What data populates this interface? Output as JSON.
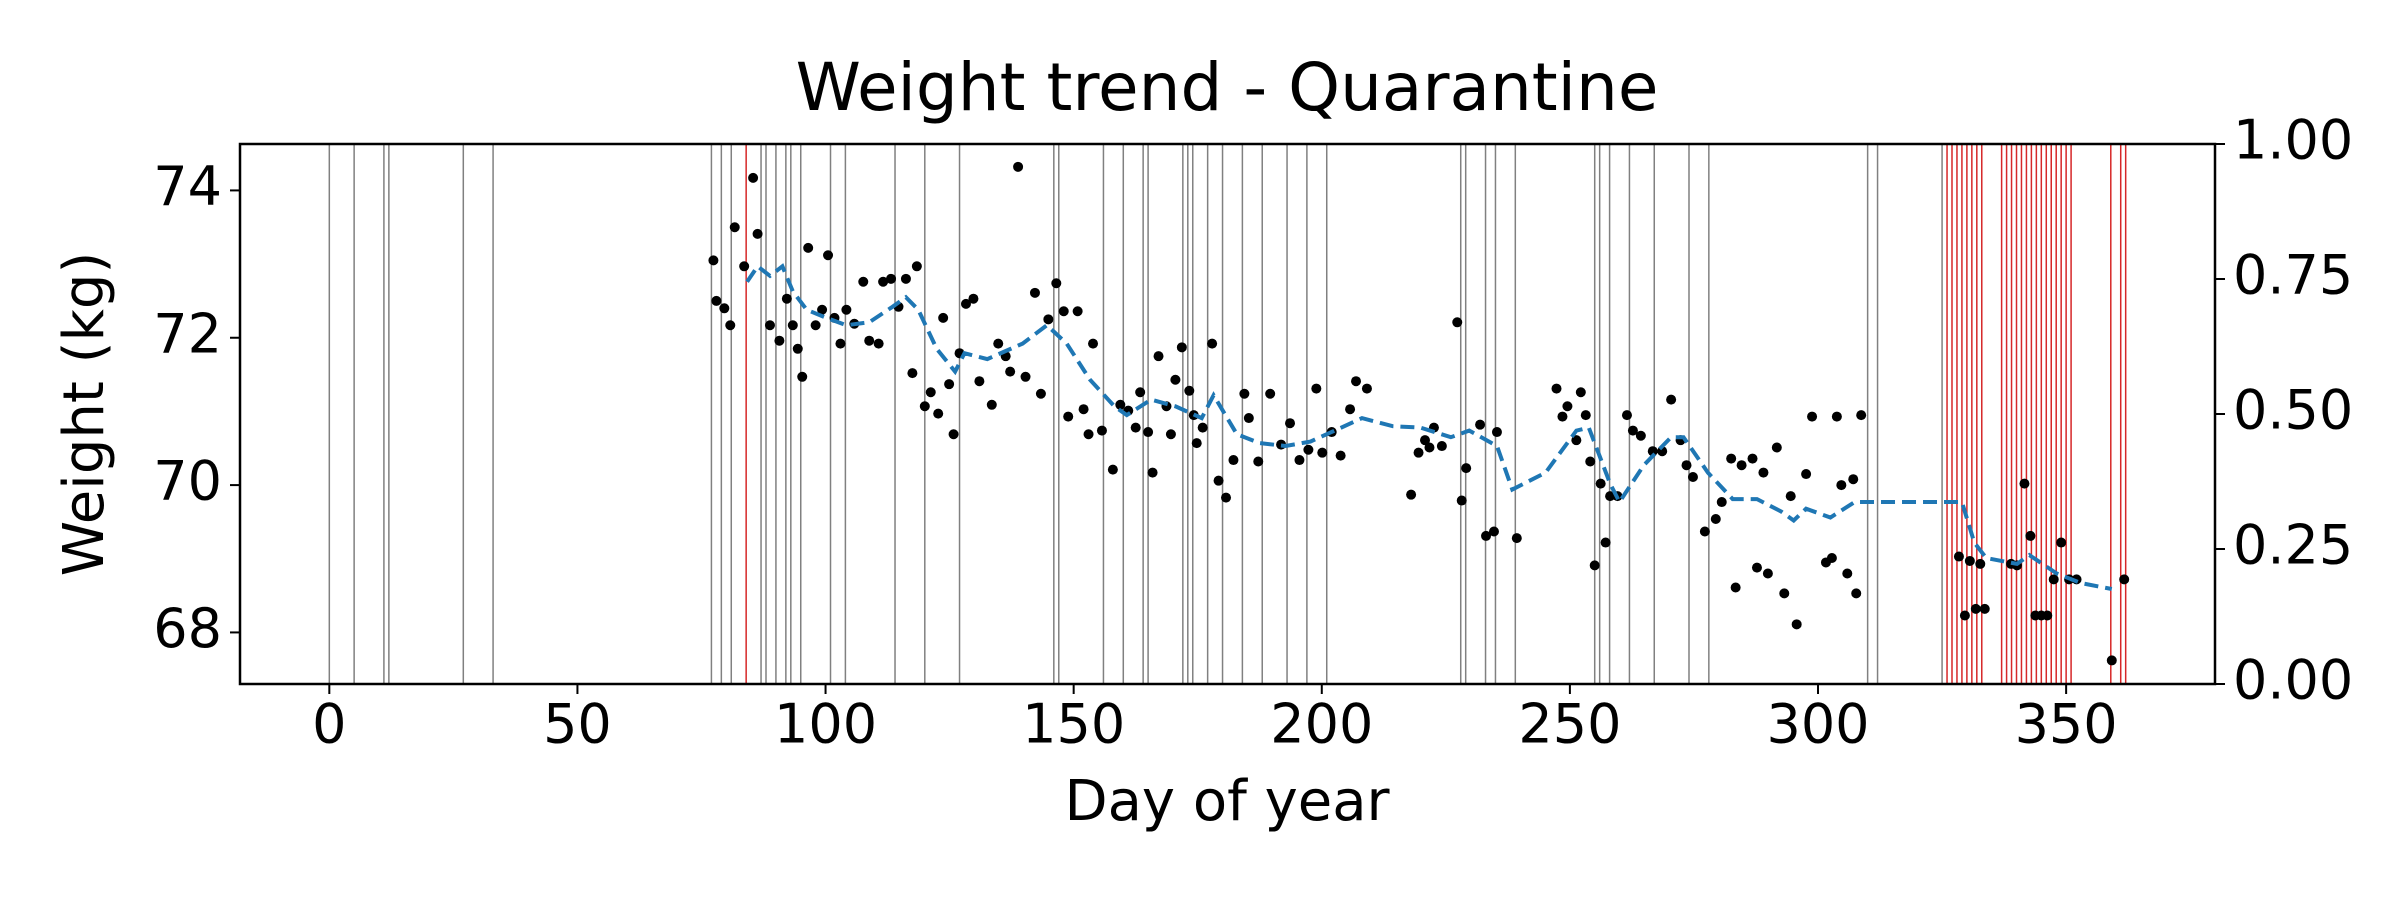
{
  "chart_data": {
    "type": "scatter",
    "title": "Weight trend - Quarantine",
    "xlabel": "Day of year",
    "ylabel": "Weight (kg)",
    "xlim": [
      -18,
      380
    ],
    "ylim": [
      67.3,
      74.63
    ],
    "y2lim": [
      0,
      1
    ],
    "xticks": [
      0,
      50,
      100,
      150,
      200,
      250,
      300,
      350
    ],
    "yticks": [
      68,
      70,
      72,
      74
    ],
    "y2ticks": [
      {
        "value": 0,
        "label": "0.00"
      },
      {
        "value": 0.25,
        "label": "0.25"
      },
      {
        "value": 0.5,
        "label": "0.50"
      },
      {
        "value": 0.75,
        "label": "0.75"
      },
      {
        "value": 1,
        "label": "1.00"
      }
    ],
    "vlines_gray": {
      "color": "#808080",
      "x": [
        0,
        5,
        11,
        12,
        27,
        33,
        77,
        79,
        81,
        87,
        88,
        90,
        92,
        93,
        95,
        101,
        104,
        114,
        120,
        127,
        146,
        147,
        156,
        160,
        164,
        165,
        172,
        173,
        174,
        177,
        180,
        184,
        188,
        193,
        197,
        201,
        228,
        229,
        233,
        235,
        239,
        255,
        256,
        258,
        262,
        267,
        274,
        278,
        310,
        312,
        325
      ]
    },
    "vlines_red": {
      "color": "#d62728",
      "x": [
        84,
        326,
        327,
        328,
        329,
        330,
        331,
        332,
        333,
        337,
        338,
        339,
        340,
        341,
        342,
        343,
        344,
        345,
        346,
        347,
        348,
        349,
        350,
        351,
        359,
        361,
        362
      ]
    },
    "points": {
      "color": "#000000",
      "x": [
        77.4,
        78,
        79.6,
        80.8,
        81.7,
        83.6,
        85.4,
        86.3,
        88.8,
        90.7,
        92.2,
        93.4,
        94.4,
        95.3,
        96.5,
        98,
        99.3,
        100.5,
        101.8,
        103,
        104.2,
        105.8,
        107.6,
        108.8,
        110.7,
        111.6,
        113.2,
        114.7,
        116.2,
        117.5,
        118.4,
        120,
        121.2,
        122.7,
        123.7,
        124.9,
        125.8,
        127,
        128.3,
        129.8,
        131,
        133.5,
        134.8,
        136.3,
        137.2,
        138.8,
        140.3,
        142.2,
        143.4,
        144.9,
        146.5,
        148,
        148.9,
        150.8,
        152,
        153,
        153.9,
        155.7,
        157.9,
        159.4,
        161,
        162.5,
        163.4,
        165,
        165.9,
        167.1,
        168.7,
        169.6,
        170.5,
        171.8,
        173.3,
        174.2,
        174.8,
        176,
        177.9,
        179.2,
        180.7,
        182.2,
        184.4,
        185.3,
        187.2,
        189.6,
        191.8,
        193.6,
        195.5,
        197.3,
        198.9,
        200.1,
        202,
        203.8,
        205.7,
        206.9,
        209.1,
        218,
        219.5,
        220.8,
        221.7,
        222.6,
        224.2,
        227.3,
        228.2,
        229.1,
        231.9,
        233.1,
        234.7,
        235.3,
        239.3,
        247.3,
        248.5,
        249.5,
        251.3,
        252.2,
        253.2,
        254.1,
        255,
        256.2,
        257.2,
        258.1,
        259.6,
        261.5,
        262.7,
        264.3,
        266.7,
        268.6,
        270.4,
        272.3,
        273.5,
        274.8,
        277.2,
        279.4,
        280.6,
        282.5,
        283.4,
        284.6,
        286.8,
        287.7,
        289,
        289.9,
        291.7,
        293.2,
        294.5,
        295.7,
        297.6,
        298.8,
        301.6,
        302.8,
        303.8,
        304.7,
        305.9,
        307.1,
        307.7,
        308.7,
        328.4,
        329.6,
        330.6,
        331.8,
        332.7,
        333.6,
        338.9,
        340.1,
        341.6,
        342.8,
        343.8,
        345,
        346.2,
        347.5,
        349,
        350.6,
        352.1,
        359.2,
        361.7
      ],
      "values": [
        73.05,
        72.5,
        72.4,
        72.17,
        73.5,
        72.97,
        74.17,
        73.41,
        72.17,
        71.96,
        72.53,
        72.17,
        71.85,
        71.47,
        73.22,
        72.17,
        72.38,
        73.12,
        72.27,
        71.92,
        72.38,
        72.19,
        72.76,
        71.96,
        71.92,
        72.76,
        72.8,
        72.42,
        72.8,
        71.52,
        72.97,
        71.07,
        71.26,
        70.97,
        72.27,
        71.37,
        70.69,
        71.79,
        72.46,
        72.53,
        71.41,
        71.09,
        71.92,
        71.75,
        71.54,
        74.32,
        71.47,
        72.61,
        71.24,
        72.25,
        72.74,
        72.36,
        70.93,
        72.36,
        71.03,
        70.69,
        71.92,
        70.74,
        70.21,
        71.09,
        71.01,
        70.78,
        71.26,
        70.72,
        70.17,
        71.75,
        71.07,
        70.69,
        71.43,
        71.87,
        71.28,
        70.95,
        70.57,
        70.78,
        71.92,
        70.06,
        69.83,
        70.34,
        71.24,
        70.91,
        70.32,
        71.24,
        70.55,
        70.84,
        70.34,
        70.48,
        71.31,
        70.44,
        70.72,
        70.4,
        71.03,
        71.41,
        71.31,
        69.87,
        70.44,
        70.61,
        70.51,
        70.78,
        70.53,
        72.21,
        69.79,
        70.23,
        70.82,
        69.31,
        69.37,
        70.72,
        69.28,
        71.31,
        70.93,
        71.07,
        70.61,
        71.26,
        70.95,
        70.32,
        68.91,
        70.02,
        69.22,
        69.85,
        69.85,
        70.95,
        70.74,
        70.67,
        70.46,
        70.46,
        71.16,
        70.61,
        70.27,
        70.11,
        69.37,
        69.54,
        69.77,
        70.36,
        68.61,
        70.27,
        70.36,
        68.88,
        70.17,
        68.8,
        70.51,
        68.53,
        69.85,
        68.11,
        70.15,
        70.93,
        68.95,
        69.01,
        70.93,
        70.0,
        68.8,
        70.08,
        68.53,
        70.95,
        69.03,
        68.23,
        68.97,
        68.32,
        68.93,
        68.32,
        68.93,
        68.91,
        70.02,
        69.31,
        68.23,
        68.23,
        68.23,
        68.72,
        69.22,
        68.72,
        68.72,
        67.62,
        68.72
      ]
    },
    "trend": {
      "color": "#1f77b4",
      "linestyle": "dashed",
      "x": [
        84.2,
        86.3,
        88.8,
        91.3,
        93.4,
        96.2,
        100.2,
        104.2,
        108.8,
        113.5,
        116.2,
        118.7,
        122.4,
        126.1,
        128,
        132.6,
        139.7,
        144.6,
        148.6,
        153.3,
        158.2,
        160.7,
        165.6,
        170.5,
        175.8,
        178.2,
        182.9,
        187.5,
        192.7,
        197.7,
        202.6,
        208.1,
        214.3,
        219.9,
        226,
        229.7,
        235.3,
        238.4,
        245.1,
        251.3,
        253.8,
        258.1,
        260,
        264.9,
        270.4,
        272.9,
        277.8,
        282.8,
        287.7,
        292.6,
        295.1,
        297.6,
        302.5,
        307.4,
        329,
        331.5,
        333.9,
        340.1,
        342.6,
        348.1,
        353,
        359.2
      ],
      "values": [
        72.76,
        72.97,
        72.84,
        72.97,
        72.63,
        72.38,
        72.27,
        72.17,
        72.21,
        72.42,
        72.55,
        72.38,
        71.85,
        71.54,
        71.79,
        71.71,
        71.92,
        72.17,
        71.92,
        71.43,
        71.07,
        70.95,
        71.16,
        71.07,
        70.91,
        71.22,
        70.69,
        70.57,
        70.53,
        70.59,
        70.74,
        70.91,
        70.8,
        70.78,
        70.65,
        70.74,
        70.53,
        69.94,
        70.17,
        70.74,
        70.78,
        70.02,
        69.77,
        70.27,
        70.65,
        70.65,
        70.17,
        69.81,
        69.81,
        69.64,
        69.52,
        69.68,
        69.56,
        69.77,
        69.77,
        69.22,
        69.01,
        68.93,
        69.05,
        68.8,
        68.67,
        68.59
      ]
    }
  }
}
